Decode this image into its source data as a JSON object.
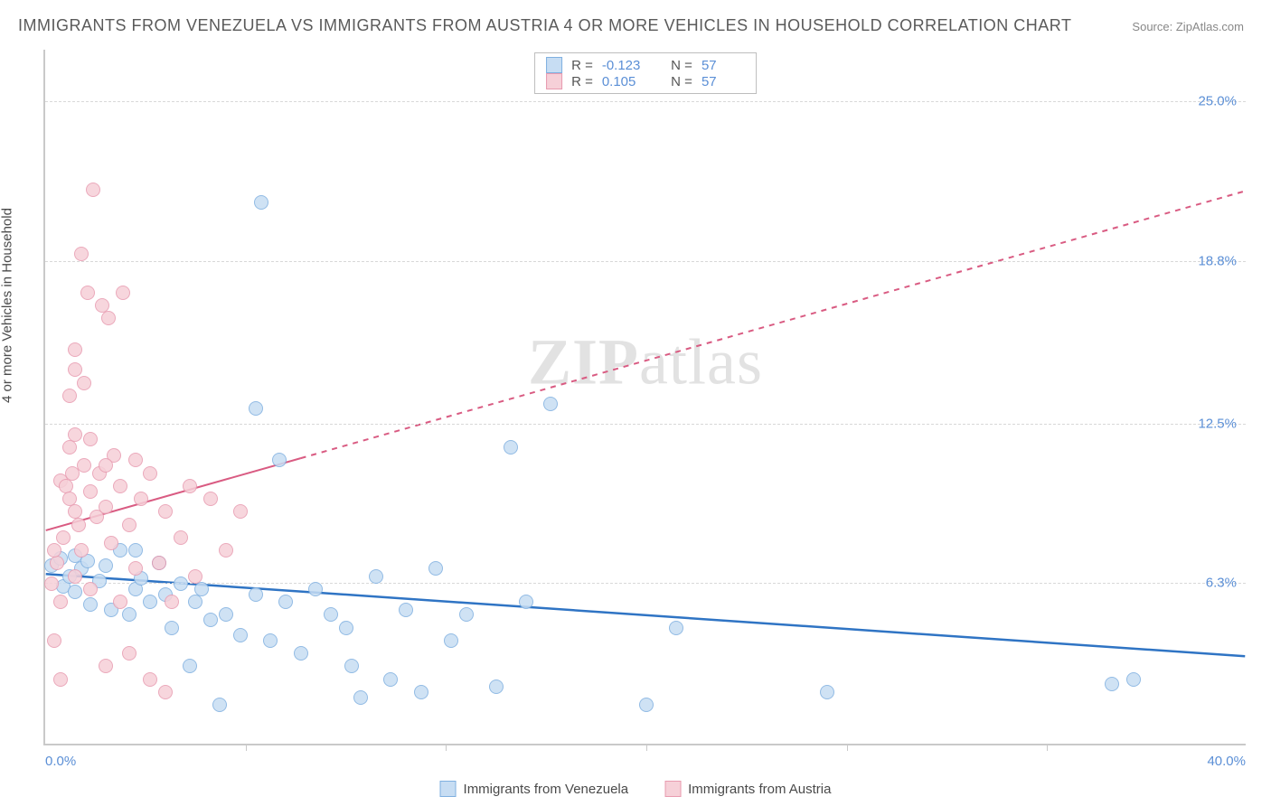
{
  "title": "IMMIGRANTS FROM VENEZUELA VS IMMIGRANTS FROM AUSTRIA 4 OR MORE VEHICLES IN HOUSEHOLD CORRELATION CHART",
  "source_label": "Source:",
  "source_value": "ZipAtlas.com",
  "ylabel": "4 or more Vehicles in Household",
  "watermark_a": "ZIP",
  "watermark_b": "atlas",
  "chart": {
    "type": "scatter",
    "xlim": [
      0,
      40
    ],
    "ylim": [
      0,
      27
    ],
    "x_min_label": "0.0%",
    "x_max_label": "40.0%",
    "y_ticks": [
      {
        "v": 6.3,
        "label": "6.3%"
      },
      {
        "v": 12.5,
        "label": "12.5%"
      },
      {
        "v": 18.8,
        "label": "18.8%"
      },
      {
        "v": 25.0,
        "label": "25.0%"
      }
    ],
    "x_grid": [
      6.67,
      13.33,
      20.0,
      26.67,
      33.33
    ],
    "background_color": "#ffffff",
    "grid_color": "#d8d8d8",
    "axis_color": "#c9c9c9",
    "series": [
      {
        "name": "Immigrants from Venezuela",
        "fill": "#c7ddf3",
        "stroke": "#7fb0e0",
        "swatch_fill": "#c7ddf3",
        "swatch_border": "#7fb0e0",
        "marker_size": 16,
        "R": "-0.123",
        "N": "57",
        "trend": {
          "color": "#2f74c4",
          "width": 2.5,
          "dash": "none",
          "x1": 0,
          "y1": 6.6,
          "x2": 40,
          "y2": 3.4
        },
        "points": [
          {
            "x": 0.2,
            "y": 6.9
          },
          {
            "x": 0.5,
            "y": 7.2
          },
          {
            "x": 0.6,
            "y": 6.1
          },
          {
            "x": 0.8,
            "y": 6.5
          },
          {
            "x": 1.0,
            "y": 5.9
          },
          {
            "x": 1.2,
            "y": 6.8
          },
          {
            "x": 1.4,
            "y": 7.1
          },
          {
            "x": 1.5,
            "y": 5.4
          },
          {
            "x": 1.8,
            "y": 6.3
          },
          {
            "x": 2.0,
            "y": 6.9
          },
          {
            "x": 2.2,
            "y": 5.2
          },
          {
            "x": 2.5,
            "y": 7.5
          },
          {
            "x": 2.8,
            "y": 5.0
          },
          {
            "x": 3.0,
            "y": 6.0
          },
          {
            "x": 3.2,
            "y": 6.4
          },
          {
            "x": 3.5,
            "y": 5.5
          },
          {
            "x": 3.8,
            "y": 7.0
          },
          {
            "x": 4.0,
            "y": 5.8
          },
          {
            "x": 4.2,
            "y": 4.5
          },
          {
            "x": 4.5,
            "y": 6.2
          },
          {
            "x": 4.8,
            "y": 3.0
          },
          {
            "x": 5.0,
            "y": 5.5
          },
          {
            "x": 5.2,
            "y": 6.0
          },
          {
            "x": 5.5,
            "y": 4.8
          },
          {
            "x": 5.8,
            "y": 1.5
          },
          {
            "x": 6.0,
            "y": 5.0
          },
          {
            "x": 6.5,
            "y": 4.2
          },
          {
            "x": 7.0,
            "y": 5.8
          },
          {
            "x": 7.0,
            "y": 13.0
          },
          {
            "x": 7.2,
            "y": 21.0
          },
          {
            "x": 7.5,
            "y": 4.0
          },
          {
            "x": 7.8,
            "y": 11.0
          },
          {
            "x": 8.0,
            "y": 5.5
          },
          {
            "x": 8.5,
            "y": 3.5
          },
          {
            "x": 9.0,
            "y": 6.0
          },
          {
            "x": 9.5,
            "y": 5.0
          },
          {
            "x": 10.0,
            "y": 4.5
          },
          {
            "x": 10.2,
            "y": 3.0
          },
          {
            "x": 10.5,
            "y": 1.8
          },
          {
            "x": 11.0,
            "y": 6.5
          },
          {
            "x": 11.5,
            "y": 2.5
          },
          {
            "x": 12.0,
            "y": 5.2
          },
          {
            "x": 12.5,
            "y": 2.0
          },
          {
            "x": 13.0,
            "y": 6.8
          },
          {
            "x": 13.5,
            "y": 4.0
          },
          {
            "x": 14.0,
            "y": 5.0
          },
          {
            "x": 15.0,
            "y": 2.2
          },
          {
            "x": 15.5,
            "y": 11.5
          },
          {
            "x": 16.0,
            "y": 5.5
          },
          {
            "x": 16.8,
            "y": 13.2
          },
          {
            "x": 20.0,
            "y": 1.5
          },
          {
            "x": 21.0,
            "y": 4.5
          },
          {
            "x": 26.0,
            "y": 2.0
          },
          {
            "x": 35.5,
            "y": 2.3
          },
          {
            "x": 36.2,
            "y": 2.5
          },
          {
            "x": 3.0,
            "y": 7.5
          },
          {
            "x": 1.0,
            "y": 7.3
          }
        ]
      },
      {
        "name": "Immigrants from Austria",
        "fill": "#f6d0d8",
        "stroke": "#e89bb0",
        "swatch_fill": "#f6d0d8",
        "swatch_border": "#e89bb0",
        "marker_size": 16,
        "R": "0.105",
        "N": "57",
        "trend": {
          "color": "#d95b82",
          "width": 2,
          "dash": "solid_then_dashed",
          "x1": 0,
          "y1": 8.3,
          "x2": 40,
          "y2": 21.5,
          "solid_until_x": 8.5
        },
        "points": [
          {
            "x": 0.2,
            "y": 6.2
          },
          {
            "x": 0.3,
            "y": 4.0
          },
          {
            "x": 0.4,
            "y": 7.0
          },
          {
            "x": 0.5,
            "y": 5.5
          },
          {
            "x": 0.5,
            "y": 10.2
          },
          {
            "x": 0.6,
            "y": 8.0
          },
          {
            "x": 0.7,
            "y": 10.0
          },
          {
            "x": 0.8,
            "y": 9.5
          },
          {
            "x": 0.8,
            "y": 11.5
          },
          {
            "x": 0.9,
            "y": 10.5
          },
          {
            "x": 1.0,
            "y": 6.5
          },
          {
            "x": 1.0,
            "y": 9.0
          },
          {
            "x": 1.0,
            "y": 14.5
          },
          {
            "x": 1.0,
            "y": 15.3
          },
          {
            "x": 1.1,
            "y": 8.5
          },
          {
            "x": 1.2,
            "y": 19.0
          },
          {
            "x": 1.2,
            "y": 7.5
          },
          {
            "x": 1.3,
            "y": 10.8
          },
          {
            "x": 1.3,
            "y": 14.0
          },
          {
            "x": 1.4,
            "y": 17.5
          },
          {
            "x": 1.5,
            "y": 9.8
          },
          {
            "x": 1.5,
            "y": 6.0
          },
          {
            "x": 1.6,
            "y": 21.5
          },
          {
            "x": 1.7,
            "y": 8.8
          },
          {
            "x": 1.8,
            "y": 10.5
          },
          {
            "x": 1.9,
            "y": 17.0
          },
          {
            "x": 2.0,
            "y": 3.0
          },
          {
            "x": 2.0,
            "y": 9.2
          },
          {
            "x": 2.1,
            "y": 16.5
          },
          {
            "x": 2.2,
            "y": 7.8
          },
          {
            "x": 2.3,
            "y": 11.2
          },
          {
            "x": 2.5,
            "y": 5.5
          },
          {
            "x": 2.5,
            "y": 10.0
          },
          {
            "x": 2.6,
            "y": 17.5
          },
          {
            "x": 2.8,
            "y": 8.5
          },
          {
            "x": 2.8,
            "y": 3.5
          },
          {
            "x": 3.0,
            "y": 11.0
          },
          {
            "x": 3.0,
            "y": 6.8
          },
          {
            "x": 3.2,
            "y": 9.5
          },
          {
            "x": 3.5,
            "y": 2.5
          },
          {
            "x": 3.5,
            "y": 10.5
          },
          {
            "x": 3.8,
            "y": 7.0
          },
          {
            "x": 4.0,
            "y": 9.0
          },
          {
            "x": 4.0,
            "y": 2.0
          },
          {
            "x": 4.2,
            "y": 5.5
          },
          {
            "x": 4.5,
            "y": 8.0
          },
          {
            "x": 4.8,
            "y": 10.0
          },
          {
            "x": 5.0,
            "y": 6.5
          },
          {
            "x": 5.5,
            "y": 9.5
          },
          {
            "x": 6.0,
            "y": 7.5
          },
          {
            "x": 6.5,
            "y": 9.0
          },
          {
            "x": 0.5,
            "y": 2.5
          },
          {
            "x": 0.3,
            "y": 7.5
          },
          {
            "x": 1.0,
            "y": 12.0
          },
          {
            "x": 0.8,
            "y": 13.5
          },
          {
            "x": 1.5,
            "y": 11.8
          },
          {
            "x": 2.0,
            "y": 10.8
          }
        ]
      }
    ],
    "stats_legend": {
      "r_label": "R =",
      "n_label": "N ="
    },
    "label_color": "#5b8fd6",
    "text_color": "#4a4a4a",
    "title_fontsize": 18,
    "label_fontsize": 15
  }
}
